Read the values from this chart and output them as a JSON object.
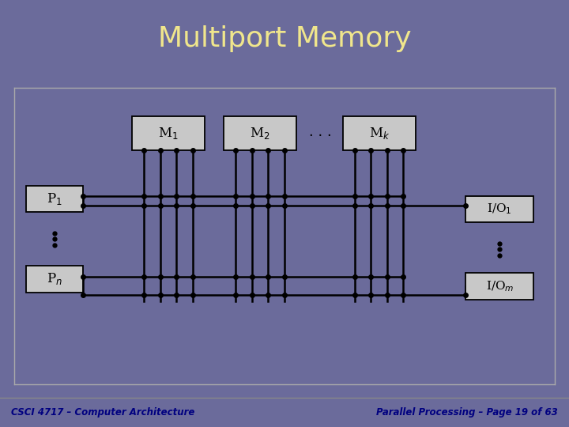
{
  "title": "Multiport Memory",
  "title_color": "#F0E68C",
  "header_bg": "#6B6B9B",
  "content_bg": "#FFFFFF",
  "footer_left": "CSCI 4717 – Computer Architecture",
  "footer_right": "Parallel Processing – Page 19 of 63",
  "footer_color": "#000080",
  "box_fill": "#C8C8C8",
  "box_edge": "#000000",
  "line_color": "#000000",
  "dot_color": "#000000"
}
